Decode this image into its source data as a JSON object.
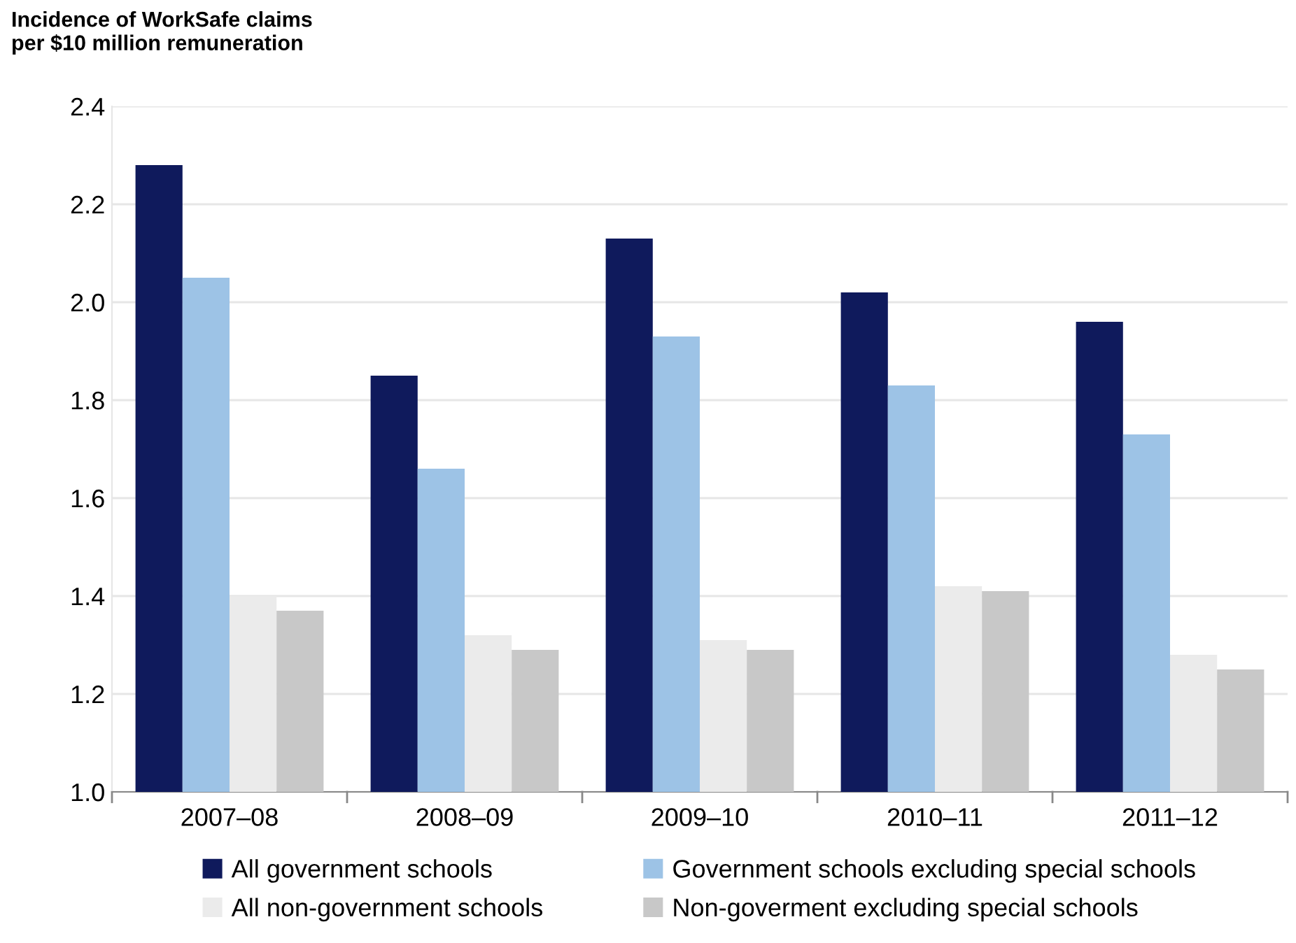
{
  "chart_data": {
    "type": "bar",
    "ylabel": "Incidence of WorkSafe claims\nper $10 million remuneration",
    "categories": [
      "2007–08",
      "2008–09",
      "2009–10",
      "2010–11",
      "2011–12"
    ],
    "series": [
      {
        "name": "All government schools",
        "color": "#0f1a5c",
        "values": [
          2.28,
          1.85,
          2.13,
          2.02,
          1.96
        ]
      },
      {
        "name": "Government schools excluding special schools",
        "color": "#9dc3e6",
        "values": [
          2.05,
          1.66,
          1.93,
          1.83,
          1.73
        ]
      },
      {
        "name": "All non-government schools",
        "color": "#ebebeb",
        "values": [
          1.4,
          1.32,
          1.31,
          1.42,
          1.28
        ]
      },
      {
        "name": "Non-goverment excluding special schools",
        "color": "#c8c8c8",
        "values": [
          1.37,
          1.29,
          1.29,
          1.41,
          1.25
        ]
      }
    ],
    "ylim": [
      1.0,
      2.4
    ],
    "yticks": [
      {
        "value": 1.0,
        "label": "1.0"
      },
      {
        "value": 1.2,
        "label": "1.2"
      },
      {
        "value": 1.4,
        "label": "1.4"
      },
      {
        "value": 1.6,
        "label": "1.6"
      },
      {
        "value": 1.8,
        "label": "1.8"
      },
      {
        "value": 2.0,
        "label": "2.0"
      },
      {
        "value": 2.2,
        "label": "2.2"
      },
      {
        "value": 2.4,
        "label": "2.4"
      }
    ],
    "grid": "y",
    "legend": "bottom"
  }
}
